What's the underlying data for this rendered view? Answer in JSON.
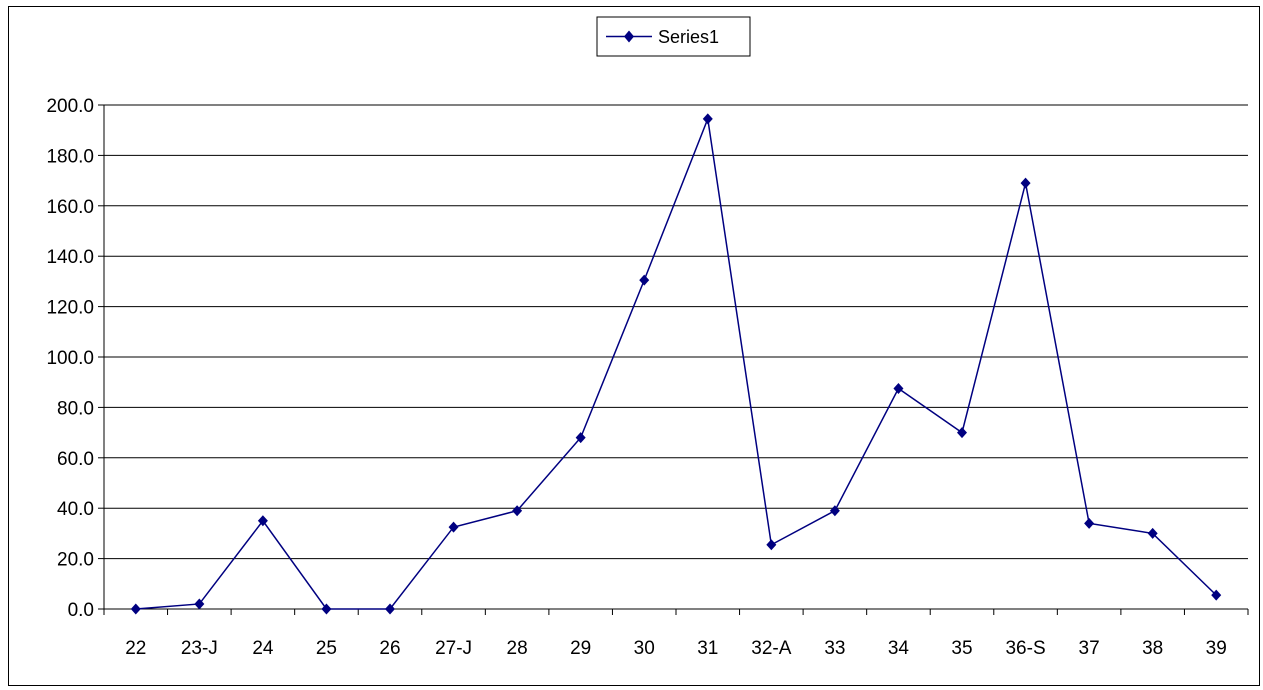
{
  "chart_data": {
    "type": "line",
    "categories": [
      "22",
      "23-J",
      "24",
      "25",
      "26",
      "27-J",
      "28",
      "29",
      "30",
      "31",
      "32-A",
      "33",
      "34",
      "35",
      "36-S",
      "37",
      "38",
      "39"
    ],
    "series": [
      {
        "name": "Series1",
        "values": [
          0.0,
          2.0,
          35.0,
          0.0,
          0.0,
          32.5,
          39.0,
          68.0,
          130.5,
          194.5,
          25.5,
          39.0,
          87.5,
          70.0,
          169.0,
          34.0,
          30.0,
          5.5
        ],
        "color": "#000080"
      }
    ],
    "ylim": [
      0,
      200
    ],
    "yticks": [
      "0.0",
      "20.0",
      "40.0",
      "60.0",
      "80.0",
      "100.0",
      "120.0",
      "140.0",
      "160.0",
      "180.0",
      "200.0"
    ],
    "grid": true,
    "legend_position": "top-center",
    "xlabel": "",
    "ylabel": "",
    "title": ""
  }
}
